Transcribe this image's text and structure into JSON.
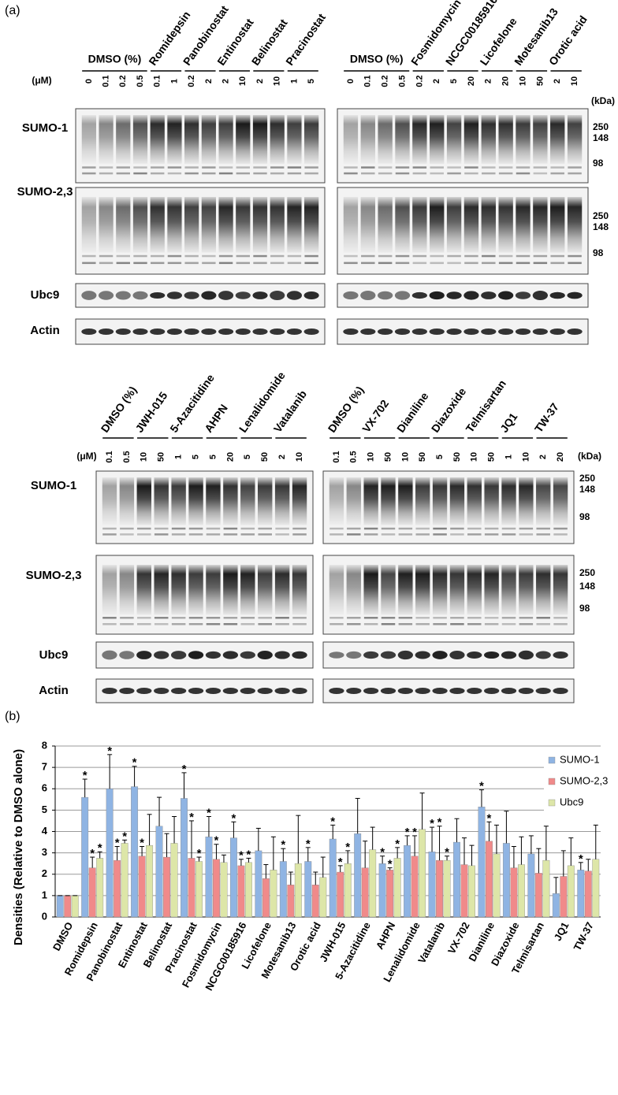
{
  "panel_a": {
    "label": "(a)",
    "unit": "(μM)",
    "kda": "(kDa)",
    "rows": [
      "SUMO-1",
      "SUMO-2,3",
      "Ubc9",
      "Actin"
    ],
    "markers": [
      250,
      148,
      98
    ],
    "blots": [
      {
        "groups": [
          {
            "name": "DMSO (%)",
            "doses": [
              0,
              0.1,
              0.2,
              0.5
            ]
          },
          {
            "name": "Romidepsin",
            "doses": [
              0.1,
              1
            ]
          },
          {
            "name": "Panobinostat",
            "doses": [
              0.2,
              2
            ]
          },
          {
            "name": "Entinostat",
            "doses": [
              2,
              10
            ]
          },
          {
            "name": "Belinostat",
            "doses": [
              2,
              10
            ]
          },
          {
            "name": "Pracinostat",
            "doses": [
              1,
              5
            ]
          }
        ]
      },
      {
        "groups": [
          {
            "name": "DMSO (%)",
            "doses": [
              0,
              0.1,
              0.2,
              0.5
            ]
          },
          {
            "name": "Fosmidomycin",
            "doses": [
              0.2,
              2
            ]
          },
          {
            "name": "NCGC00185916",
            "doses": [
              5,
              20
            ]
          },
          {
            "name": "Licofelone",
            "doses": [
              2,
              20
            ]
          },
          {
            "name": "Motesanib13",
            "doses": [
              10,
              50
            ]
          },
          {
            "name": "Orotic acid",
            "doses": [
              2,
              10
            ]
          }
        ]
      },
      {
        "groups": [
          {
            "name": "DMSO (%)",
            "doses": [
              0.1,
              0.5
            ]
          },
          {
            "name": "JWH-015",
            "doses": [
              10,
              50
            ]
          },
          {
            "name": "5-Azacitidine",
            "doses": [
              1,
              5
            ]
          },
          {
            "name": "AHPN",
            "doses": [
              5,
              20
            ]
          },
          {
            "name": "Lenalidomide",
            "doses": [
              5,
              50
            ]
          },
          {
            "name": "Vatalanib",
            "doses": [
              2,
              10
            ]
          }
        ]
      },
      {
        "groups": [
          {
            "name": "DMSO (%)",
            "doses": [
              0.1,
              0.5
            ]
          },
          {
            "name": "VX-702",
            "doses": [
              10,
              50
            ]
          },
          {
            "name": "Dianiline",
            "doses": [
              10,
              50
            ]
          },
          {
            "name": "Diazoxide",
            "doses": [
              5,
              50
            ]
          },
          {
            "name": "Telmisartan",
            "doses": [
              10,
              50
            ]
          },
          {
            "name": "JQ1",
            "doses": [
              1,
              10
            ]
          },
          {
            "name": "TW-37",
            "doses": [
              2,
              20
            ]
          }
        ]
      }
    ]
  },
  "panel_b": {
    "label": "(b)"
  },
  "chart_data": {
    "type": "bar",
    "y_label": "Densities (Relative to DMSO alone)",
    "categories": [
      "DMSO",
      "Romidepsin",
      "Panobinostat",
      "Entinostat",
      "Belinostat",
      "Pracinostat",
      "Fosmidomycin",
      "NCGC00185916",
      "Licofelone",
      "Motesanib13",
      "Orotic acid",
      "JWH-015",
      "5-Azacitidine",
      "AHPN",
      "Lenalidomide",
      "Vatalanib",
      "VX-702",
      "Dianiline",
      "Diazoxide",
      "Telmisartan",
      "JQ1",
      "TW-37"
    ],
    "series": [
      {
        "name": "SUMO-1",
        "color": "#8fb4e3",
        "values": [
          1,
          5.6,
          6.0,
          6.1,
          4.25,
          5.55,
          3.75,
          3.7,
          3.1,
          2.6,
          2.6,
          3.65,
          3.9,
          2.5,
          3.35,
          3.05,
          3.5,
          5.15,
          3.45,
          2.95,
          1.1,
          2.2
        ],
        "errors": [
          0,
          0.85,
          1.6,
          0.95,
          1.35,
          1.2,
          0.95,
          0.75,
          1.05,
          0.6,
          0.65,
          0.65,
          1.65,
          0.35,
          0.45,
          1.15,
          1.1,
          0.8,
          1.5,
          0.85,
          0.75,
          0.35
        ],
        "significance": [
          null,
          "*",
          "*",
          "*",
          null,
          "*",
          "*",
          "*",
          null,
          "*",
          "*",
          "*",
          null,
          "*",
          "*",
          "*",
          null,
          "*",
          null,
          null,
          null,
          "*"
        ]
      },
      {
        "name": "SUMO-2,3",
        "color": "#f08a8a",
        "values": [
          1,
          2.3,
          2.65,
          2.85,
          2.8,
          2.75,
          2.7,
          2.4,
          1.8,
          1.5,
          1.5,
          2.1,
          2.3,
          2.2,
          2.85,
          2.65,
          2.45,
          3.55,
          2.3,
          2.05,
          1.9,
          2.15
        ],
        "errors": [
          0,
          0.5,
          0.65,
          0.45,
          1.1,
          1.75,
          0.7,
          0.3,
          0.65,
          0.6,
          0.6,
          0.3,
          1.25,
          0.1,
          0.95,
          1.6,
          1.25,
          0.9,
          1.0,
          1.15,
          1.2,
          0.55
        ],
        "significance": [
          null,
          "*",
          "*",
          "*",
          null,
          "*",
          "*",
          "*",
          null,
          null,
          null,
          "*",
          null,
          "*",
          "*",
          "*",
          null,
          "*",
          null,
          null,
          null,
          null
        ]
      },
      {
        "name": "Ubc9",
        "color": "#dde6a8",
        "values": [
          1,
          2.75,
          3.45,
          3.35,
          3.45,
          2.6,
          2.55,
          2.55,
          2.2,
          2.5,
          1.85,
          2.5,
          3.15,
          2.75,
          4.1,
          2.65,
          2.4,
          2.95,
          2.45,
          2.65,
          2.4,
          2.7
        ],
        "errors": [
          0,
          0.3,
          0.15,
          1.45,
          1.25,
          0.2,
          0.35,
          0.2,
          1.55,
          2.25,
          0.95,
          0.6,
          1.05,
          0.5,
          1.7,
          0.2,
          0.95,
          1.35,
          1.3,
          1.6,
          1.3,
          1.6
        ],
        "significance": [
          null,
          "*",
          "*",
          null,
          null,
          "*",
          null,
          "*",
          null,
          null,
          null,
          "*",
          null,
          "*",
          null,
          "*",
          null,
          null,
          null,
          null,
          null,
          null
        ]
      }
    ],
    "ylim": [
      0,
      8
    ],
    "yticks": [
      0,
      1,
      2,
      3,
      4,
      5,
      6,
      7,
      8
    ],
    "grid": true,
    "legend": "upper right"
  }
}
